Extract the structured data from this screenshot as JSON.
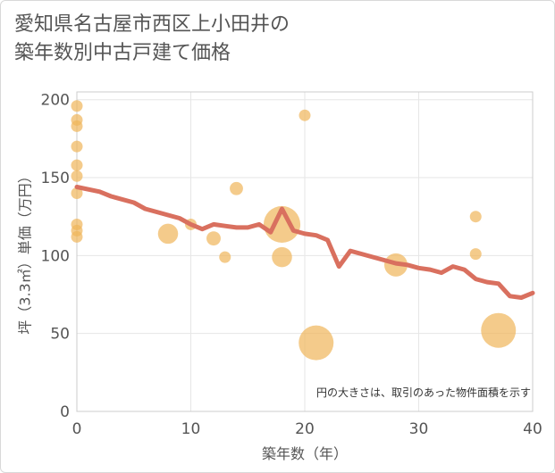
{
  "chart_data": {
    "type": "scatter",
    "title_lines": [
      "愛知県名古屋市西区上小田井の",
      "築年数別中古戸建て価格"
    ],
    "xlabel": "築年数（年）",
    "ylabel": "坪（3.3㎡）単価（万円）",
    "note": "円の大きさは、取引のあった物件面積を示す",
    "xlim": [
      0,
      40
    ],
    "ylim": [
      0,
      205
    ],
    "xticks": [
      0,
      10,
      20,
      30,
      40
    ],
    "yticks": [
      0,
      50,
      100,
      150,
      200
    ],
    "grid": true,
    "colors": {
      "bubble": "#f0b55a",
      "trend": "#d9705f",
      "grid": "#e6e6e6"
    },
    "points": [
      {
        "x": 0,
        "y": 196,
        "size": 1
      },
      {
        "x": 0,
        "y": 187,
        "size": 1
      },
      {
        "x": 0,
        "y": 183,
        "size": 1
      },
      {
        "x": 0,
        "y": 170,
        "size": 1
      },
      {
        "x": 0,
        "y": 158,
        "size": 1
      },
      {
        "x": 0,
        "y": 151,
        "size": 1
      },
      {
        "x": 0,
        "y": 140,
        "size": 1
      },
      {
        "x": 0,
        "y": 120,
        "size": 1
      },
      {
        "x": 0,
        "y": 116,
        "size": 1
      },
      {
        "x": 0,
        "y": 112,
        "size": 1
      },
      {
        "x": 8,
        "y": 114,
        "size": 3
      },
      {
        "x": 10,
        "y": 120,
        "size": 1
      },
      {
        "x": 12,
        "y": 111,
        "size": 1.5
      },
      {
        "x": 13,
        "y": 99,
        "size": 1
      },
      {
        "x": 14,
        "y": 143,
        "size": 1.3
      },
      {
        "x": 18,
        "y": 120,
        "size": 10
      },
      {
        "x": 18,
        "y": 99,
        "size": 3
      },
      {
        "x": 20,
        "y": 190,
        "size": 1
      },
      {
        "x": 21,
        "y": 44,
        "size": 9
      },
      {
        "x": 28,
        "y": 94,
        "size": 4
      },
      {
        "x": 35,
        "y": 125,
        "size": 1
      },
      {
        "x": 35,
        "y": 101,
        "size": 1
      },
      {
        "x": 37,
        "y": 52,
        "size": 9
      }
    ],
    "trend": {
      "x": [
        0,
        2,
        3,
        5,
        6,
        7,
        8,
        9,
        10,
        11,
        12,
        13,
        14,
        15,
        16,
        17,
        18,
        19,
        20,
        21,
        22,
        23,
        24,
        25,
        26,
        27,
        28,
        29,
        30,
        31,
        32,
        33,
        34,
        35,
        36,
        37,
        38,
        39,
        40
      ],
      "y": [
        144,
        141,
        138,
        134,
        130,
        128,
        126,
        124,
        120,
        117,
        120,
        119,
        118,
        118,
        120,
        115,
        130,
        116,
        114,
        113,
        110,
        93,
        103,
        101,
        99,
        97,
        95,
        94,
        92,
        91,
        89,
        93,
        91,
        85,
        83,
        82,
        74,
        73,
        76
      ]
    }
  }
}
